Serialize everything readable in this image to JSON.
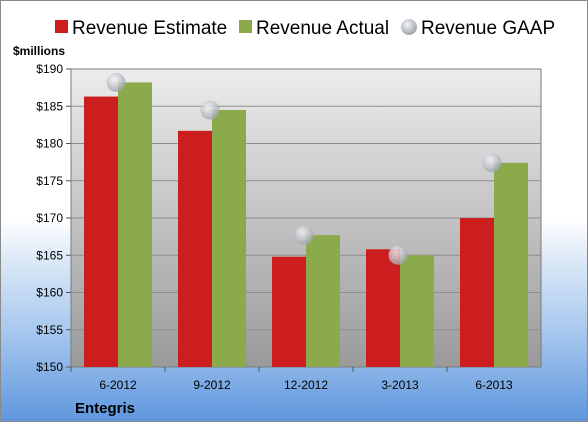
{
  "chart_data": {
    "type": "bar",
    "unit_label": "$millions",
    "categories": [
      "6-2012",
      "9-2012",
      "12-2012",
      "3-2013",
      "6-2013"
    ],
    "series": [
      {
        "name": "Revenue Estimate",
        "kind": "bar",
        "color": "#cc1e1e",
        "values": [
          186.3,
          181.7,
          164.8,
          165.8,
          170.0
        ]
      },
      {
        "name": "Revenue Actual",
        "kind": "bar",
        "color": "#8aaa4c",
        "values": [
          188.2,
          184.5,
          167.7,
          165.0,
          177.4
        ]
      },
      {
        "name": "Revenue GAAP",
        "kind": "marker",
        "color": "#c0c4cc",
        "values": [
          188.2,
          184.5,
          167.7,
          165.0,
          177.4
        ]
      }
    ],
    "ylim": [
      150,
      190
    ],
    "yticks": [
      "$150",
      "$155",
      "$160",
      "$165",
      "$170",
      "$175",
      "$180",
      "$185",
      "$190"
    ],
    "grid": true,
    "legend_position": "top",
    "footer": "Entegris"
  }
}
